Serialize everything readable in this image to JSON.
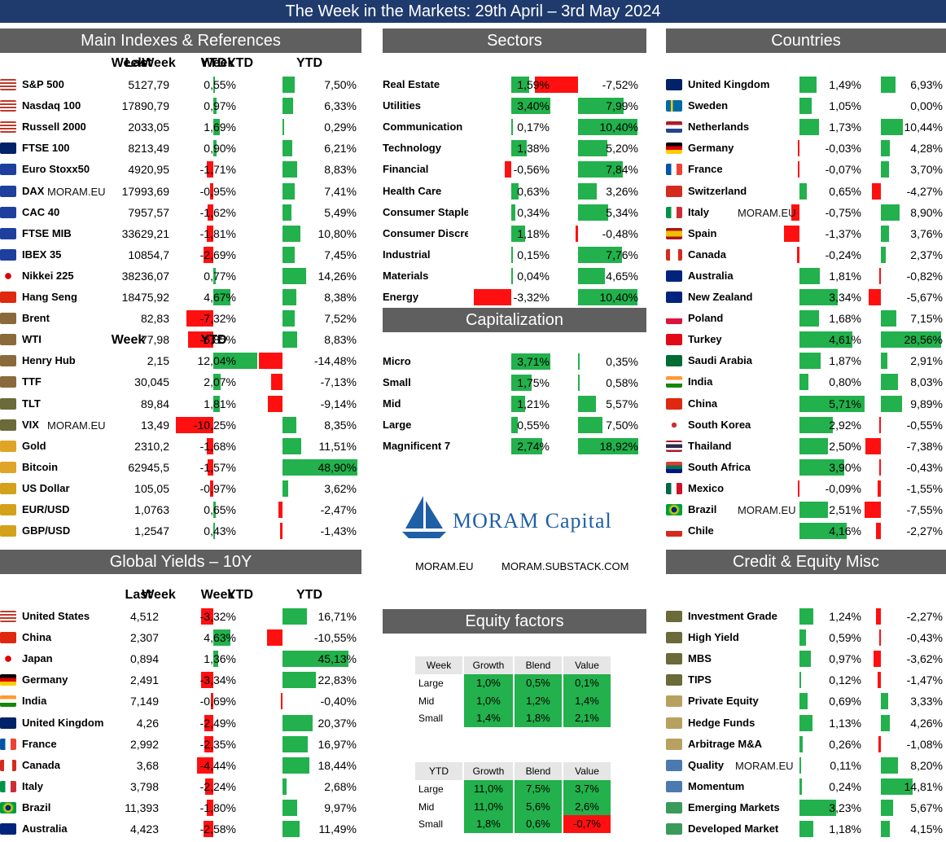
{
  "title": "The Week in the Markets: 29th April – 3rd May 2024",
  "watermark": "MORAM.EU",
  "colors": {
    "title_bg": "#1f3b6d",
    "header_bg": "#5f5f5f",
    "pos": "#22b14c",
    "neg": "#ff1010"
  },
  "main": {
    "header": "Main Indexes & References",
    "cols": {
      "last": "Last",
      "week": "Week",
      "ytd": "YTD"
    },
    "rows": [
      {
        "flag": "us",
        "name": "S&P 500",
        "last": "5127,79",
        "week": "0,55%",
        "ytd": "7,50%",
        "w": 0.55,
        "y": 7.5
      },
      {
        "flag": "us",
        "name": "Nasdaq 100",
        "last": "17890,79",
        "week": "0,97%",
        "ytd": "6,33%",
        "w": 0.97,
        "y": 6.33
      },
      {
        "flag": "us",
        "name": "Russell 2000",
        "last": "2033,05",
        "week": "1,69%",
        "ytd": "0,29%",
        "w": 1.69,
        "y": 0.29
      },
      {
        "flag": "uk",
        "name": "FTSE 100",
        "last": "8213,49",
        "week": "0,90%",
        "ytd": "6,21%",
        "w": 0.9,
        "y": 6.21
      },
      {
        "flag": "eu",
        "name": "Euro Stoxx50",
        "last": "4920,95",
        "week": "-1,71%",
        "ytd": "8,83%",
        "w": -1.71,
        "y": 8.83
      },
      {
        "flag": "eu",
        "name": "DAX",
        "last": "17993,69",
        "week": "-0,95%",
        "ytd": "7,41%",
        "w": -0.95,
        "y": 7.41,
        "wm": true
      },
      {
        "flag": "eu",
        "name": "CAC 40",
        "last": "7957,57",
        "week": "-1,62%",
        "ytd": "5,49%",
        "w": -1.62,
        "y": 5.49
      },
      {
        "flag": "eu",
        "name": "FTSE MIB",
        "last": "33629,21",
        "week": "-1,81%",
        "ytd": "10,80%",
        "w": -1.81,
        "y": 10.8
      },
      {
        "flag": "eu",
        "name": "IBEX 35",
        "last": "10854,7",
        "week": "-2,69%",
        "ytd": "7,45%",
        "w": -2.69,
        "y": 7.45
      },
      {
        "flag": "jp",
        "name": "Nikkei 225",
        "last": "38236,07",
        "week": "0,77%",
        "ytd": "14,26%",
        "w": 0.77,
        "y": 14.26
      },
      {
        "flag": "cn",
        "name": "Hang Seng",
        "last": "18475,92",
        "week": "4,67%",
        "ytd": "8,38%",
        "w": 4.67,
        "y": 8.38
      },
      {
        "flag": "oil",
        "name": "Brent",
        "last": "82,83",
        "week": "-7,32%",
        "ytd": "7,52%",
        "w": -7.32,
        "y": 7.52
      },
      {
        "flag": "oil",
        "name": "WTI",
        "last": "77,98",
        "week": "-6,85%",
        "ytd": "8,83%",
        "w": -6.85,
        "y": 8.83
      },
      {
        "flag": "oil",
        "name": "Henry Hub",
        "last": "2,15",
        "week": "12,04%",
        "ytd": "-14,48%",
        "w": 12.04,
        "y": -14.48
      },
      {
        "flag": "oil",
        "name": "TTF",
        "last": "30,045",
        "week": "2,07%",
        "ytd": "-7,13%",
        "w": 2.07,
        "y": -7.13
      },
      {
        "flag": "bank",
        "name": "TLT",
        "last": "89,84",
        "week": "1,81%",
        "ytd": "-9,14%",
        "w": 1.81,
        "y": -9.14
      },
      {
        "flag": "bank",
        "name": "VIX",
        "last": "13,49",
        "week": "-10,25%",
        "ytd": "8,35%",
        "w": -10.25,
        "y": 8.35,
        "wm": true
      },
      {
        "flag": "gold",
        "name": "Gold",
        "last": "2310,2",
        "week": "-1,68%",
        "ytd": "11,51%",
        "w": -1.68,
        "y": 11.51
      },
      {
        "flag": "gold",
        "name": "Bitcoin",
        "last": "62945,5",
        "week": "-1,57%",
        "ytd": "48,90%",
        "w": -1.57,
        "y": 48.9
      },
      {
        "flag": "coin",
        "name": "US Dollar",
        "last": "105,05",
        "week": "-0,97%",
        "ytd": "3,62%",
        "w": -0.97,
        "y": 3.62
      },
      {
        "flag": "coin",
        "name": "EUR/USD",
        "last": "1,0763",
        "week": "0,65%",
        "ytd": "-2,47%",
        "w": 0.65,
        "y": -2.47
      },
      {
        "flag": "coin",
        "name": "GBP/USD",
        "last": "1,2547",
        "week": "0,43%",
        "ytd": "-1,43%",
        "w": 0.43,
        "y": -1.43
      }
    ]
  },
  "sectors": {
    "header": "Sectors",
    "cols": {
      "week": "Week",
      "ytd": "YTD"
    },
    "rows": [
      {
        "name": "Real Estate",
        "week": "1,59%",
        "ytd": "-7,52%",
        "w": 1.59,
        "y": -7.52
      },
      {
        "name": "Utilities",
        "week": "3,40%",
        "ytd": "7,99%",
        "w": 3.4,
        "y": 7.99
      },
      {
        "name": "Communication",
        "week": "0,17%",
        "ytd": "10,40%",
        "w": 0.17,
        "y": 10.4
      },
      {
        "name": "Technology",
        "week": "1,38%",
        "ytd": "5,20%",
        "w": 1.38,
        "y": 5.2
      },
      {
        "name": "Financial",
        "week": "-0,56%",
        "ytd": "7,84%",
        "w": -0.56,
        "y": 7.84
      },
      {
        "name": "Health Care",
        "week": "0,63%",
        "ytd": "3,26%",
        "w": 0.63,
        "y": 3.26
      },
      {
        "name": "Consumer Staple",
        "week": "0,34%",
        "ytd": "5,34%",
        "w": 0.34,
        "y": 5.34
      },
      {
        "name": "Consumer Discre",
        "week": "1,18%",
        "ytd": "-0,48%",
        "w": 1.18,
        "y": -0.48
      },
      {
        "name": "Industrial",
        "week": "0,15%",
        "ytd": "7,76%",
        "w": 0.15,
        "y": 7.76
      },
      {
        "name": "Materials",
        "week": "0,04%",
        "ytd": "4,65%",
        "w": 0.04,
        "y": 4.65
      },
      {
        "name": "Energy",
        "week": "-3,32%",
        "ytd": "10,40%",
        "w": -3.32,
        "y": 10.4
      }
    ]
  },
  "cap": {
    "header": "Capitalization",
    "cols": {
      "week": "Week",
      "ytd": "YTD"
    },
    "rows": [
      {
        "name": "Micro",
        "week": "3,71%",
        "ytd": "0,35%",
        "w": 3.71,
        "y": 0.35
      },
      {
        "name": "Small",
        "week": "1,75%",
        "ytd": "0,58%",
        "w": 1.75,
        "y": 0.58
      },
      {
        "name": "Mid",
        "week": "1,21%",
        "ytd": "5,57%",
        "w": 1.21,
        "y": 5.57
      },
      {
        "name": "Large",
        "week": "0,55%",
        "ytd": "7,50%",
        "w": 0.55,
        "y": 7.5
      },
      {
        "name": "Magnificent 7",
        "week": "2,74%",
        "ytd": "18,92%",
        "w": 2.74,
        "y": 18.92
      }
    ]
  },
  "countries": {
    "header": "Countries",
    "cols": {
      "week": "Week",
      "ytd": "YTD"
    },
    "rows": [
      {
        "flag": "uk",
        "name": "United Kingdom",
        "week": "1,49%",
        "ytd": "6,93%",
        "w": 1.49,
        "y": 6.93
      },
      {
        "flag": "se",
        "name": "Sweden",
        "week": "1,05%",
        "ytd": "0,00%",
        "w": 1.05,
        "y": 0.0
      },
      {
        "flag": "nl",
        "name": "Netherlands",
        "week": "1,73%",
        "ytd": "10,44%",
        "w": 1.73,
        "y": 10.44
      },
      {
        "flag": "de",
        "name": "Germany",
        "week": "-0,03%",
        "ytd": "4,28%",
        "w": -0.03,
        "y": 4.28
      },
      {
        "flag": "fr",
        "name": "France",
        "week": "-0,07%",
        "ytd": "3,70%",
        "w": -0.07,
        "y": 3.7
      },
      {
        "flag": "ch",
        "name": "Switzerland",
        "week": "0,65%",
        "ytd": "-4,27%",
        "w": 0.65,
        "y": -4.27
      },
      {
        "flag": "it",
        "name": "Italy",
        "week": "-0,75%",
        "ytd": "8,90%",
        "w": -0.75,
        "y": 8.9,
        "wm": true
      },
      {
        "flag": "es",
        "name": "Spain",
        "week": "-1,37%",
        "ytd": "3,76%",
        "w": -1.37,
        "y": 3.76
      },
      {
        "flag": "ca",
        "name": "Canada",
        "week": "-0,24%",
        "ytd": "2,37%",
        "w": -0.24,
        "y": 2.37
      },
      {
        "flag": "au",
        "name": "Australia",
        "week": "1,81%",
        "ytd": "-0,82%",
        "w": 1.81,
        "y": -0.82
      },
      {
        "flag": "nz",
        "name": "New Zealand",
        "week": "3,34%",
        "ytd": "-5,67%",
        "w": 3.34,
        "y": -5.67
      },
      {
        "flag": "pl",
        "name": "Poland",
        "week": "1,68%",
        "ytd": "7,15%",
        "w": 1.68,
        "y": 7.15
      },
      {
        "flag": "tr",
        "name": "Turkey",
        "week": "4,61%",
        "ytd": "28,56%",
        "w": 4.61,
        "y": 28.56
      },
      {
        "flag": "sa",
        "name": "Saudi Arabia",
        "week": "1,87%",
        "ytd": "2,91%",
        "w": 1.87,
        "y": 2.91
      },
      {
        "flag": "in",
        "name": "India",
        "week": "0,80%",
        "ytd": "8,03%",
        "w": 0.8,
        "y": 8.03
      },
      {
        "flag": "cn",
        "name": "China",
        "week": "5,71%",
        "ytd": "9,89%",
        "w": 5.71,
        "y": 9.89
      },
      {
        "flag": "kr",
        "name": "South Korea",
        "week": "2,92%",
        "ytd": "-0,55%",
        "w": 2.92,
        "y": -0.55
      },
      {
        "flag": "th",
        "name": "Thailand",
        "week": "2,50%",
        "ytd": "-7,38%",
        "w": 2.5,
        "y": -7.38
      },
      {
        "flag": "za",
        "name": "South Africa",
        "week": "3,90%",
        "ytd": "-0,43%",
        "w": 3.9,
        "y": -0.43
      },
      {
        "flag": "mx",
        "name": "Mexico",
        "week": "-0,09%",
        "ytd": "-1,55%",
        "w": -0.09,
        "y": -1.55
      },
      {
        "flag": "br",
        "name": "Brazil",
        "week": "2,51%",
        "ytd": "-7,55%",
        "w": 2.51,
        "y": -7.55,
        "wm": true
      },
      {
        "flag": "cl",
        "name": "Chile",
        "week": "4,16%",
        "ytd": "-2,27%",
        "w": 4.16,
        "y": -2.27
      }
    ]
  },
  "yields": {
    "header": "Global Yields – 10Y",
    "cols": {
      "last": "Last",
      "week": "Week",
      "ytd": "YTD"
    },
    "rows": [
      {
        "flag": "us",
        "name": "United States",
        "last": "4,512",
        "week": "-3,32%",
        "ytd": "16,71%",
        "w": -3.32,
        "y": 16.71
      },
      {
        "flag": "cn",
        "name": "China",
        "last": "2,307",
        "week": "4,63%",
        "ytd": "-10,55%",
        "w": 4.63,
        "y": -10.55
      },
      {
        "flag": "jp",
        "name": "Japan",
        "last": "0,894",
        "week": "1,36%",
        "ytd": "45,13%",
        "w": 1.36,
        "y": 45.13
      },
      {
        "flag": "de",
        "name": "Germany",
        "last": "2,491",
        "week": "-3,34%",
        "ytd": "22,83%",
        "w": -3.34,
        "y": 22.83
      },
      {
        "flag": "in",
        "name": "India",
        "last": "7,149",
        "week": "-0,69%",
        "ytd": "-0,40%",
        "w": -0.69,
        "y": -0.4
      },
      {
        "flag": "uk",
        "name": "United Kingdom",
        "last": "4,26",
        "week": "-2,49%",
        "ytd": "20,37%",
        "w": -2.49,
        "y": 20.37
      },
      {
        "flag": "fr",
        "name": "France",
        "last": "2,992",
        "week": "-2,35%",
        "ytd": "16,97%",
        "w": -2.35,
        "y": 16.97
      },
      {
        "flag": "ca",
        "name": "Canada",
        "last": "3,68",
        "week": "-4,44%",
        "ytd": "18,44%",
        "w": -4.44,
        "y": 18.44
      },
      {
        "flag": "it",
        "name": "Italy",
        "last": "3,798",
        "week": "-2,24%",
        "ytd": "2,68%",
        "w": -2.24,
        "y": 2.68
      },
      {
        "flag": "br",
        "name": "Brazil",
        "last": "11,393",
        "week": "-1,80%",
        "ytd": "9,97%",
        "w": -1.8,
        "y": 9.97
      },
      {
        "flag": "au",
        "name": "Australia",
        "last": "4,423",
        "week": "-2,58%",
        "ytd": "11,49%",
        "w": -2.58,
        "y": 11.49
      }
    ]
  },
  "credit": {
    "header": "Credit & Equity Misc",
    "cols": {
      "week": "Week",
      "ytd": "YTD"
    },
    "rows": [
      {
        "flag": "bank",
        "name": "Investment Grade",
        "week": "1,24%",
        "ytd": "-2,27%",
        "w": 1.24,
        "y": -2.27
      },
      {
        "flag": "bank",
        "name": "High Yield",
        "week": "0,59%",
        "ytd": "-0,43%",
        "w": 0.59,
        "y": -0.43
      },
      {
        "flag": "bank",
        "name": "MBS",
        "week": "0,97%",
        "ytd": "-3,62%",
        "w": 0.97,
        "y": -3.62
      },
      {
        "flag": "bank",
        "name": "TIPS",
        "week": "0,12%",
        "ytd": "-1,47%",
        "w": 0.12,
        "y": -1.47
      },
      {
        "flag": "people",
        "name": "Private Equity",
        "week": "0,69%",
        "ytd": "3,33%",
        "w": 0.69,
        "y": 3.33
      },
      {
        "flag": "people",
        "name": "Hedge Funds",
        "week": "1,13%",
        "ytd": "4,26%",
        "w": 1.13,
        "y": 4.26
      },
      {
        "flag": "people",
        "name": "Arbitrage M&A",
        "week": "0,26%",
        "ytd": "-1,08%",
        "w": 0.26,
        "y": -1.08
      },
      {
        "flag": "gem",
        "name": "Quality",
        "week": "0,11%",
        "ytd": "8,20%",
        "w": 0.11,
        "y": 8.2,
        "wm": true
      },
      {
        "flag": "gem",
        "name": "Momentum",
        "week": "0,24%",
        "ytd": "14,81%",
        "w": 0.24,
        "y": 14.81
      },
      {
        "flag": "globe",
        "name": "Emerging Markets",
        "week": "3,23%",
        "ytd": "5,67%",
        "w": 3.23,
        "y": 5.67
      },
      {
        "flag": "globe",
        "name": "Developed Market",
        "week": "1,18%",
        "ytd": "4,15%",
        "w": 1.18,
        "y": 4.15
      }
    ]
  },
  "logo": {
    "brand": "MORAM Capital",
    "link1": "MORAM.EU",
    "link2": "MORAM.SUBSTACK.COM"
  },
  "factors": {
    "header": "Equity factors",
    "week": {
      "corner": "Week",
      "cols": [
        "Growth",
        "Blend",
        "Value"
      ],
      "rows": [
        {
          "label": "Large",
          "vals": [
            "1,0%",
            "0,5%",
            "0,1%"
          ]
        },
        {
          "label": "Mid",
          "vals": [
            "1,0%",
            "1,2%",
            "1,4%"
          ]
        },
        {
          "label": "Small",
          "vals": [
            "1,4%",
            "1,8%",
            "2,1%"
          ]
        }
      ]
    },
    "ytd": {
      "corner": "YTD",
      "cols": [
        "Growth",
        "Blend",
        "Value"
      ],
      "rows": [
        {
          "label": "Large",
          "vals": [
            "11,0%",
            "7,5%",
            "3,7%"
          ]
        },
        {
          "label": "Mid",
          "vals": [
            "11,0%",
            "5,6%",
            "2,6%"
          ]
        },
        {
          "label": "Small",
          "vals": [
            "1,8%",
            "0,6%",
            "-0,7%"
          ]
        }
      ]
    }
  }
}
